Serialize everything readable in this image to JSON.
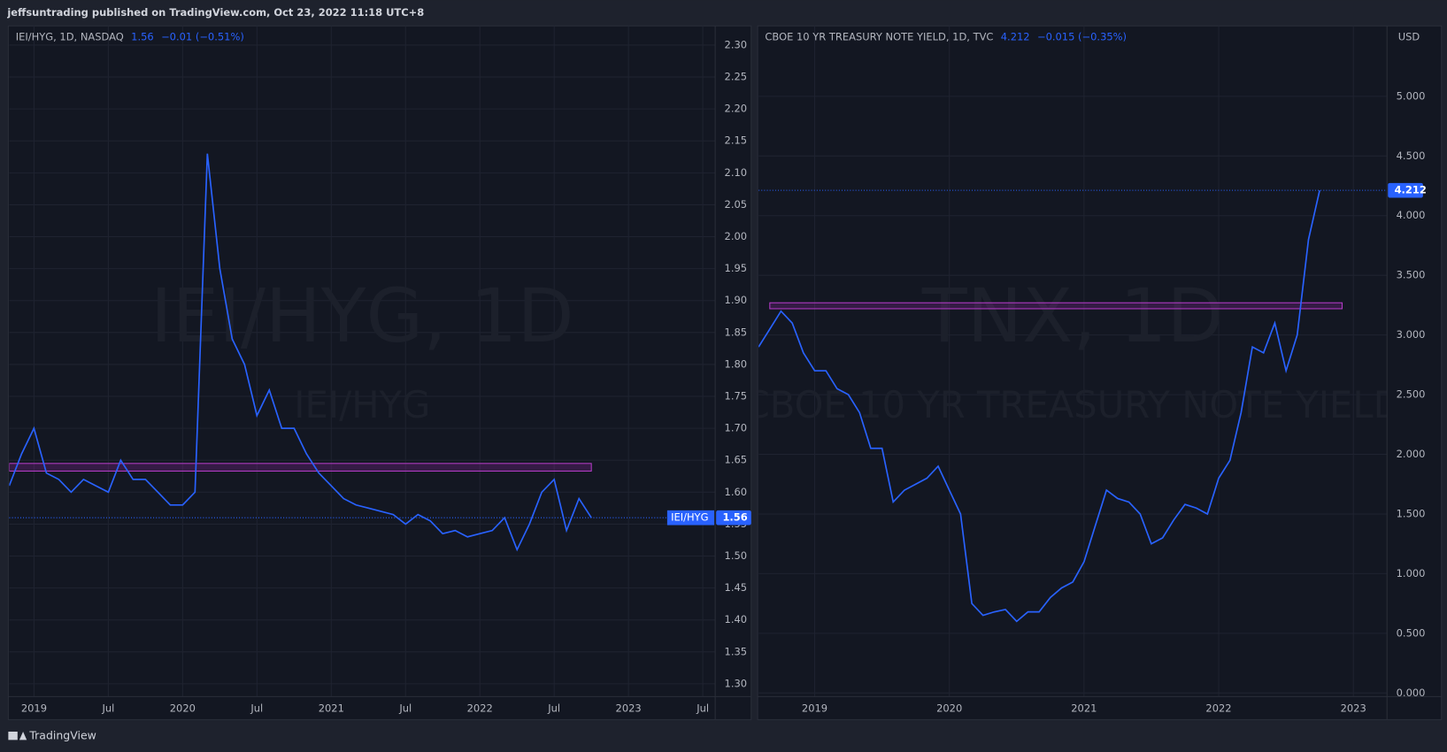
{
  "header": "jeffsuntrading published on TradingView.com, Oct 23, 2022 11:18 UTC+8",
  "footer": "TradingView",
  "chart_data": [
    {
      "type": "line",
      "legend": {
        "title": "IEI/HYG, 1D, NASDAQ",
        "price": 1.56,
        "change": "−0.01 (−0.51%)"
      },
      "watermark": "IEI/HYG, 1D",
      "watermark_sub": "IEI/HYG",
      "price_tag": "IEI/HYG",
      "color": "#2962ff",
      "x": [
        "2018-11",
        "2018-12",
        "2019-01",
        "2019-02",
        "2019-03",
        "2019-04",
        "2019-05",
        "2019-06",
        "2019-07",
        "2019-08",
        "2019-09",
        "2019-10",
        "2019-11",
        "2019-12",
        "2020-01",
        "2020-02",
        "2020-03",
        "2020-04",
        "2020-05",
        "2020-06",
        "2020-07",
        "2020-08",
        "2020-09",
        "2020-10",
        "2020-11",
        "2020-12",
        "2021-01",
        "2021-02",
        "2021-03",
        "2021-04",
        "2021-05",
        "2021-06",
        "2021-07",
        "2021-08",
        "2021-09",
        "2021-10",
        "2021-11",
        "2021-12",
        "2022-01",
        "2022-02",
        "2022-03",
        "2022-04",
        "2022-05",
        "2022-06",
        "2022-07",
        "2022-08",
        "2022-09",
        "2022-10"
      ],
      "values": [
        1.61,
        1.66,
        1.7,
        1.63,
        1.62,
        1.6,
        1.62,
        1.61,
        1.6,
        1.65,
        1.62,
        1.62,
        1.6,
        1.58,
        1.58,
        1.6,
        2.13,
        1.95,
        1.84,
        1.8,
        1.72,
        1.76,
        1.7,
        1.7,
        1.66,
        1.63,
        1.61,
        1.59,
        1.58,
        1.575,
        1.57,
        1.565,
        1.55,
        1.565,
        1.555,
        1.535,
        1.54,
        1.53,
        1.535,
        1.54,
        1.56,
        1.51,
        1.55,
        1.6,
        1.62,
        1.54,
        1.59,
        1.56
      ],
      "zone": [
        1.633,
        1.645
      ],
      "zone_x": [
        "2018-11",
        "2022-10"
      ],
      "xlim": [
        "2018-11",
        "2023-08"
      ],
      "xticks": [
        {
          "value": "2019-01",
          "label": "2019"
        },
        {
          "value": "2019-07",
          "label": "Jul"
        },
        {
          "value": "2020-01",
          "label": "2020"
        },
        {
          "value": "2020-07",
          "label": "Jul"
        },
        {
          "value": "2021-01",
          "label": "2021"
        },
        {
          "value": "2021-07",
          "label": "Jul"
        },
        {
          "value": "2022-01",
          "label": "2022"
        },
        {
          "value": "2022-07",
          "label": "Jul"
        },
        {
          "value": "2023-01",
          "label": "2023"
        },
        {
          "value": "2023-07",
          "label": "Jul"
        }
      ],
      "ylim": [
        1.28,
        2.33
      ],
      "yticks": [
        {
          "value": 1.3,
          "label": "1.30"
        },
        1.35,
        {
          "value": 1.4,
          "label": "1.40"
        },
        1.45,
        {
          "value": 1.5,
          "label": "1.50"
        },
        1.55,
        {
          "value": 1.6,
          "label": "1.60"
        },
        1.65,
        {
          "value": 1.7,
          "label": "1.70"
        },
        1.75,
        {
          "value": 1.8,
          "label": "1.80"
        },
        1.85,
        {
          "value": 1.9,
          "label": "1.90"
        },
        1.95,
        {
          "value": 2,
          "label": "2.00"
        },
        2.05,
        {
          "value": 2.1,
          "label": "2.10"
        },
        2.15,
        {
          "value": 2.2,
          "label": "2.20"
        },
        2.25,
        {
          "value": 2.3,
          "label": "2.30"
        }
      ],
      "grid": true
    },
    {
      "type": "line",
      "legend": {
        "title": "CBOE 10 YR TREASURY NOTE YIELD, 1D, TVC",
        "price": 4.212,
        "change": "−0.015 (−0.35%)"
      },
      "watermark": "TNX, 1D",
      "watermark_sub": "CBOE 10 YR TREASURY NOTE YIELD",
      "currency": "USD",
      "color": "#2962ff",
      "x": [
        "2018-08",
        "2018-09",
        "2018-10",
        "2018-11",
        "2018-12",
        "2019-01",
        "2019-02",
        "2019-03",
        "2019-04",
        "2019-05",
        "2019-06",
        "2019-07",
        "2019-08",
        "2019-09",
        "2019-10",
        "2019-11",
        "2019-12",
        "2020-01",
        "2020-02",
        "2020-03",
        "2020-04",
        "2020-05",
        "2020-06",
        "2020-07",
        "2020-08",
        "2020-09",
        "2020-10",
        "2020-11",
        "2020-12",
        "2021-01",
        "2021-02",
        "2021-03",
        "2021-04",
        "2021-05",
        "2021-06",
        "2021-07",
        "2021-08",
        "2021-09",
        "2021-10",
        "2021-11",
        "2021-12",
        "2022-01",
        "2022-02",
        "2022-03",
        "2022-04",
        "2022-05",
        "2022-06",
        "2022-07",
        "2022-08",
        "2022-09",
        "2022-10"
      ],
      "values": [
        2.9,
        3.05,
        3.2,
        3.1,
        2.85,
        2.7,
        2.7,
        2.55,
        2.5,
        2.35,
        2.05,
        2.05,
        1.6,
        1.7,
        1.75,
        1.8,
        1.9,
        1.7,
        1.5,
        0.75,
        0.65,
        0.68,
        0.7,
        0.6,
        0.68,
        0.68,
        0.8,
        0.88,
        0.93,
        1.1,
        1.4,
        1.7,
        1.63,
        1.6,
        1.5,
        1.25,
        1.3,
        1.45,
        1.58,
        1.55,
        1.5,
        1.8,
        1.95,
        2.35,
        2.9,
        2.85,
        3.1,
        2.7,
        3.0,
        3.8,
        4.212
      ],
      "zone": [
        3.22,
        3.27
      ],
      "zone_x": [
        "2018-09",
        "2022-12"
      ],
      "xlim": [
        "2018-08",
        "2023-04"
      ],
      "xticks": [
        {
          "value": "2019-01",
          "label": "2019"
        },
        {
          "value": "2020-01",
          "label": "2020"
        },
        {
          "value": "2021-01",
          "label": "2021"
        },
        {
          "value": "2022-01",
          "label": "2022"
        },
        {
          "value": "2023-01",
          "label": "2023"
        }
      ],
      "ylim": [
        -0.03,
        5.59
      ],
      "yticks": [
        {
          "value": 0,
          "label": "0.000"
        },
        {
          "value": 0.5,
          "label": "0.500"
        },
        {
          "value": 1,
          "label": "1.000"
        },
        {
          "value": 1.5,
          "label": "1.500"
        },
        {
          "value": 2,
          "label": "2.000"
        },
        {
          "value": 2.5,
          "label": "2.500"
        },
        {
          "value": 3,
          "label": "3.000"
        },
        {
          "value": 3.5,
          "label": "3.500"
        },
        {
          "value": 4,
          "label": "4.000"
        },
        {
          "value": 4.5,
          "label": "4.500"
        },
        {
          "value": 5,
          "label": "5.000"
        }
      ],
      "grid": true
    }
  ]
}
